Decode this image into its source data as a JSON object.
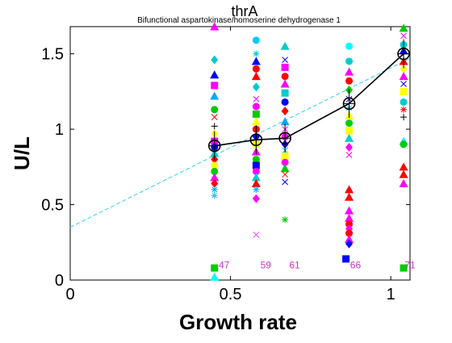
{
  "chart_data": {
    "type": "scatter",
    "title": "thrA",
    "subtitle": "Bifunctional aspartokinase/homoserine dehydrogenase 1",
    "xlabel": "Growth rate",
    "ylabel": "U/L",
    "xlim": [
      0,
      1.06
    ],
    "ylim": [
      0,
      1.68
    ],
    "xticks": [
      0,
      0.5,
      1
    ],
    "xtick_labels": [
      "0",
      "0.5",
      "1"
    ],
    "yticks": [
      0,
      0.5,
      1,
      1.5
    ],
    "ytick_labels": [
      "0",
      "0.5",
      "1",
      "1.5"
    ],
    "grid": false,
    "mean_series": {
      "x": [
        0.45,
        0.58,
        0.67,
        0.87,
        1.04
      ],
      "y": [
        0.89,
        0.93,
        0.94,
        1.17,
        1.5
      ]
    },
    "fit_line": {
      "x": [
        0,
        1.06
      ],
      "y": [
        0.35,
        1.47
      ],
      "color": "#33ccee"
    },
    "count_labels": [
      {
        "x": 0.48,
        "text": "47"
      },
      {
        "x": 0.61,
        "text": "59"
      },
      {
        "x": 0.7,
        "text": "61"
      },
      {
        "x": 0.89,
        "text": "66"
      },
      {
        "x": 1.06,
        "text": "71"
      }
    ],
    "count_label_y": 0.1,
    "count_label_color": "#cc33cc",
    "replicate_points": [
      {
        "x": 0.45,
        "y": 1.68,
        "m": "triangle",
        "c": "#ff00ff"
      },
      {
        "x": 0.45,
        "y": 1.46,
        "m": "diamond",
        "c": "#00cccc"
      },
      {
        "x": 0.45,
        "y": 1.36,
        "m": "triangle",
        "c": "#0000ff"
      },
      {
        "x": 0.45,
        "y": 1.29,
        "m": "square",
        "c": "#ff00ff"
      },
      {
        "x": 0.45,
        "y": 1.22,
        "m": "triangle",
        "c": "#00aaff"
      },
      {
        "x": 0.45,
        "y": 1.13,
        "m": "circle",
        "c": "#00cc00"
      },
      {
        "x": 0.45,
        "y": 1.08,
        "m": "x",
        "c": "#ff0000"
      },
      {
        "x": 0.45,
        "y": 1.02,
        "m": "plus",
        "c": "#000000"
      },
      {
        "x": 0.45,
        "y": 0.97,
        "m": "diamond",
        "c": "#ffff00"
      },
      {
        "x": 0.45,
        "y": 0.92,
        "m": "square",
        "c": "#ff00ff"
      },
      {
        "x": 0.45,
        "y": 0.88,
        "m": "circle",
        "c": "#0000ff"
      },
      {
        "x": 0.45,
        "y": 0.84,
        "m": "triangle",
        "c": "#00cccc"
      },
      {
        "x": 0.45,
        "y": 0.8,
        "m": "diamond",
        "c": "#ff0000"
      },
      {
        "x": 0.45,
        "y": 0.76,
        "m": "circle",
        "c": "#ffff00"
      },
      {
        "x": 0.45,
        "y": 0.72,
        "m": "circle",
        "c": "#00cc00"
      },
      {
        "x": 0.45,
        "y": 0.68,
        "m": "triangle",
        "c": "#ff00ff"
      },
      {
        "x": 0.45,
        "y": 0.64,
        "m": "diamond",
        "c": "#ff0000"
      },
      {
        "x": 0.45,
        "y": 0.6,
        "m": "star",
        "c": "#00aaff"
      },
      {
        "x": 0.45,
        "y": 0.56,
        "m": "star",
        "c": "#00ccff"
      },
      {
        "x": 0.45,
        "y": 0.08,
        "m": "square",
        "c": "#00cc00"
      },
      {
        "x": 0.45,
        "y": 0.02,
        "m": "triangle",
        "c": "#00ffff"
      },
      {
        "x": 0.58,
        "y": 1.59,
        "m": "circle",
        "c": "#00ccff"
      },
      {
        "x": 0.58,
        "y": 1.5,
        "m": "star",
        "c": "#00cccc"
      },
      {
        "x": 0.58,
        "y": 1.45,
        "m": "triangle",
        "c": "#0000ff"
      },
      {
        "x": 0.58,
        "y": 1.4,
        "m": "circle",
        "c": "#ff0000"
      },
      {
        "x": 0.58,
        "y": 1.35,
        "m": "triangle",
        "c": "#ff0000"
      },
      {
        "x": 0.58,
        "y": 1.28,
        "m": "diamond",
        "c": "#00cccc"
      },
      {
        "x": 0.58,
        "y": 1.2,
        "m": "x",
        "c": "#ff00ff"
      },
      {
        "x": 0.58,
        "y": 1.15,
        "m": "circle",
        "c": "#ff00ff"
      },
      {
        "x": 0.58,
        "y": 1.1,
        "m": "square",
        "c": "#00cc00"
      },
      {
        "x": 0.58,
        "y": 1.05,
        "m": "triangle",
        "c": "#ffff00"
      },
      {
        "x": 0.58,
        "y": 1.0,
        "m": "circle",
        "c": "#ff0000"
      },
      {
        "x": 0.58,
        "y": 0.95,
        "m": "diamond",
        "c": "#0000ff"
      },
      {
        "x": 0.58,
        "y": 0.9,
        "m": "square",
        "c": "#ffff00"
      },
      {
        "x": 0.58,
        "y": 0.85,
        "m": "triangle",
        "c": "#ff00ff"
      },
      {
        "x": 0.58,
        "y": 0.8,
        "m": "circle",
        "c": "#00cc00"
      },
      {
        "x": 0.58,
        "y": 0.76,
        "m": "square",
        "c": "#0000ff"
      },
      {
        "x": 0.58,
        "y": 0.72,
        "m": "circle",
        "c": "#ff00ff"
      },
      {
        "x": 0.58,
        "y": 0.68,
        "m": "triangle",
        "c": "#00cccc"
      },
      {
        "x": 0.58,
        "y": 0.64,
        "m": "triangle",
        "c": "#ff0000"
      },
      {
        "x": 0.58,
        "y": 0.6,
        "m": "star",
        "c": "#00aaff"
      },
      {
        "x": 0.58,
        "y": 0.54,
        "m": "diamond",
        "c": "#ff00ff"
      },
      {
        "x": 0.58,
        "y": 0.3,
        "m": "x",
        "c": "#ff33ff"
      },
      {
        "x": 0.67,
        "y": 1.55,
        "m": "triangle",
        "c": "#00cccc"
      },
      {
        "x": 0.67,
        "y": 1.46,
        "m": "x",
        "c": "#0000ff"
      },
      {
        "x": 0.67,
        "y": 1.41,
        "m": "square",
        "c": "#ff00ff"
      },
      {
        "x": 0.67,
        "y": 1.35,
        "m": "circle",
        "c": "#ff0000"
      },
      {
        "x": 0.67,
        "y": 1.3,
        "m": "triangle",
        "c": "#ff00ff"
      },
      {
        "x": 0.67,
        "y": 1.24,
        "m": "square",
        "c": "#00cccc"
      },
      {
        "x": 0.67,
        "y": 1.18,
        "m": "circle",
        "c": "#0000ff"
      },
      {
        "x": 0.67,
        "y": 1.12,
        "m": "diamond",
        "c": "#ff0000"
      },
      {
        "x": 0.67,
        "y": 1.05,
        "m": "triangle",
        "c": "#00aaff"
      },
      {
        "x": 0.67,
        "y": 1.0,
        "m": "x",
        "c": "#ff00ff"
      },
      {
        "x": 0.67,
        "y": 0.95,
        "m": "circle",
        "c": "#ff00ff"
      },
      {
        "x": 0.67,
        "y": 0.9,
        "m": "diamond",
        "c": "#0000ff"
      },
      {
        "x": 0.67,
        "y": 0.86,
        "m": "x",
        "c": "#00cccc"
      },
      {
        "x": 0.67,
        "y": 0.82,
        "m": "square",
        "c": "#ffff00"
      },
      {
        "x": 0.67,
        "y": 0.78,
        "m": "circle",
        "c": "#ff00ff"
      },
      {
        "x": 0.67,
        "y": 0.74,
        "m": "triangle",
        "c": "#00cc00"
      },
      {
        "x": 0.67,
        "y": 0.7,
        "m": "x",
        "c": "#ff0000"
      },
      {
        "x": 0.67,
        "y": 0.65,
        "m": "x",
        "c": "#0000ff"
      },
      {
        "x": 0.67,
        "y": 0.4,
        "m": "star",
        "c": "#00cc00"
      },
      {
        "x": 0.87,
        "y": 1.55,
        "m": "circle",
        "c": "#00ffff"
      },
      {
        "x": 0.87,
        "y": 1.45,
        "m": "circle",
        "c": "#00cccc"
      },
      {
        "x": 0.87,
        "y": 1.38,
        "m": "triangle",
        "c": "#ff00ff"
      },
      {
        "x": 0.87,
        "y": 1.32,
        "m": "circle",
        "c": "#ff0000"
      },
      {
        "x": 0.87,
        "y": 1.26,
        "m": "diamond",
        "c": "#00cc00"
      },
      {
        "x": 0.87,
        "y": 1.2,
        "m": "x",
        "c": "#0000ff"
      },
      {
        "x": 0.87,
        "y": 1.14,
        "m": "star",
        "c": "#00cccc"
      },
      {
        "x": 0.87,
        "y": 1.09,
        "m": "triangle",
        "c": "#ffff00"
      },
      {
        "x": 0.87,
        "y": 1.04,
        "m": "circle",
        "c": "#00cc00"
      },
      {
        "x": 0.87,
        "y": 0.99,
        "m": "square",
        "c": "#ffff00"
      },
      {
        "x": 0.87,
        "y": 0.94,
        "m": "triangle",
        "c": "#00cccc"
      },
      {
        "x": 0.87,
        "y": 0.88,
        "m": "diamond",
        "c": "#ff00ff"
      },
      {
        "x": 0.87,
        "y": 0.83,
        "m": "x",
        "c": "#ff00ff"
      },
      {
        "x": 0.87,
        "y": 0.6,
        "m": "triangle",
        "c": "#ff0000"
      },
      {
        "x": 0.87,
        "y": 0.55,
        "m": "triangle",
        "c": "#ff0000"
      },
      {
        "x": 0.87,
        "y": 0.46,
        "m": "triangle",
        "c": "#ff00ff"
      },
      {
        "x": 0.87,
        "y": 0.41,
        "m": "triangle",
        "c": "#ff00ff"
      },
      {
        "x": 0.87,
        "y": 0.37,
        "m": "circle",
        "c": "#ff0000"
      },
      {
        "x": 0.87,
        "y": 0.34,
        "m": "diamond",
        "c": "#ff00ff"
      },
      {
        "x": 0.87,
        "y": 0.31,
        "m": "circle",
        "c": "#ff0000"
      },
      {
        "x": 0.87,
        "y": 0.27,
        "m": "triangle",
        "c": "#ff00ff"
      },
      {
        "x": 0.87,
        "y": 0.24,
        "m": "diamond",
        "c": "#0000ff"
      },
      {
        "x": 0.86,
        "y": 0.14,
        "m": "square",
        "c": "#0000ff"
      },
      {
        "x": 1.04,
        "y": 1.67,
        "m": "triangle",
        "c": "#00cc00"
      },
      {
        "x": 1.04,
        "y": 1.62,
        "m": "x",
        "c": "#ff00ff"
      },
      {
        "x": 1.04,
        "y": 1.56,
        "m": "circle",
        "c": "#00cccc"
      },
      {
        "x": 1.04,
        "y": 1.52,
        "m": "triangle",
        "c": "#0000ff"
      },
      {
        "x": 1.04,
        "y": 1.45,
        "m": "triangle",
        "c": "#ff0000"
      },
      {
        "x": 1.04,
        "y": 1.4,
        "m": "diamond",
        "c": "#ffff00"
      },
      {
        "x": 1.04,
        "y": 1.35,
        "m": "triangle",
        "c": "#ff00ff"
      },
      {
        "x": 1.04,
        "y": 1.3,
        "m": "x",
        "c": "#0000ff"
      },
      {
        "x": 1.04,
        "y": 1.25,
        "m": "square",
        "c": "#ffff00"
      },
      {
        "x": 1.04,
        "y": 1.18,
        "m": "circle",
        "c": "#00cccc"
      },
      {
        "x": 1.04,
        "y": 1.13,
        "m": "star",
        "c": "#ff0000"
      },
      {
        "x": 1.04,
        "y": 1.08,
        "m": "plus",
        "c": "#000000"
      },
      {
        "x": 1.04,
        "y": 0.92,
        "m": "triangle",
        "c": "#00ffff"
      },
      {
        "x": 1.04,
        "y": 0.9,
        "m": "circle",
        "c": "#00cc00"
      },
      {
        "x": 1.04,
        "y": 0.75,
        "m": "triangle",
        "c": "#ff0000"
      },
      {
        "x": 1.04,
        "y": 0.7,
        "m": "triangle",
        "c": "#ff0000"
      },
      {
        "x": 1.04,
        "y": 0.64,
        "m": "triangle",
        "c": "#ff00ff"
      },
      {
        "x": 1.04,
        "y": 0.08,
        "m": "square",
        "c": "#00cc00"
      }
    ]
  }
}
